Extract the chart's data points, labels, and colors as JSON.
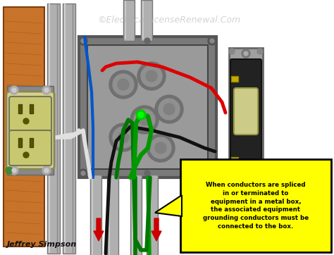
{
  "title": "©ElectricalLicenseRenewal.Com",
  "title_color": "#b0b0b0",
  "author": "Jeffrey Simpson",
  "annotation_text": "When conductors are spliced\nin or terminated to\nequipment in a metal box,\nthe associated equipment\ngrounding conductors must be\nconnected to the box.",
  "annotation_bg": "#ffff00",
  "annotation_border": "#000000",
  "bg_color": "#ffffff",
  "wood_color": "#c8732a",
  "wood_dark": "#a05820",
  "box_outer": "#7a7a7a",
  "box_inner": "#9a9a9a",
  "box_frame": "#555555",
  "conduit_color": "#b0b0b0",
  "conduit_dark": "#888888",
  "outlet_body": "#d4d090",
  "outlet_face": "#c8c870",
  "switch_bracket": "#a0a0a0",
  "switch_body": "#222222",
  "switch_toggle": "#cccc88",
  "wire_red": "#dd0000",
  "wire_black": "#111111",
  "wire_white": "#e0e0e0",
  "wire_green": "#007700",
  "wire_blue": "#0055cc",
  "wire_green2": "#009900",
  "arrow_red": "#cc0000",
  "callout_yellow": "#ffff00",
  "green_dot": "#00cc00"
}
